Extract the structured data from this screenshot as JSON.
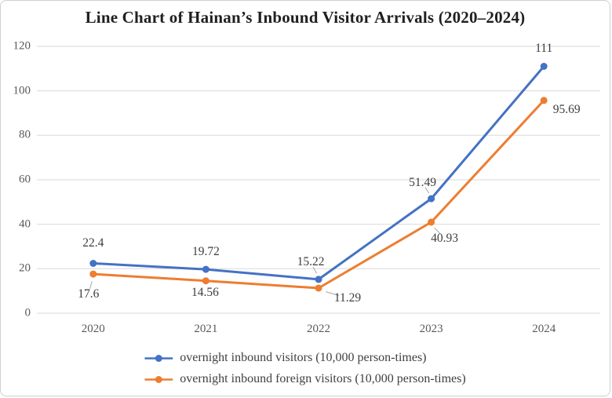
{
  "title": "Line Chart of Hainan’s Inbound Visitor Arrivals (2020–2024)",
  "chart_data": {
    "type": "line",
    "categories": [
      "2020",
      "2021",
      "2022",
      "2023",
      "2024"
    ],
    "series": [
      {
        "name": "overnight inbound visitors (10,000 person-times)",
        "color": "#4472C4",
        "values": [
          22.4,
          19.72,
          15.22,
          51.49,
          111
        ],
        "data_labels": [
          "22.4",
          "19.72",
          "15.22",
          "51.49",
          "111"
        ],
        "label_offsets": [
          [
            0,
            -26
          ],
          [
            0,
            -22
          ],
          [
            -10,
            -22
          ],
          [
            -11,
            -20
          ],
          [
            0,
            -23
          ]
        ],
        "label_leaders": [
          false,
          false,
          true,
          true,
          false
        ]
      },
      {
        "name": "overnight inbound foreign visitors (10,000 person-times)",
        "color": "#ED7D31",
        "values": [
          17.6,
          14.56,
          11.29,
          40.93,
          95.69
        ],
        "data_labels": [
          "17.6",
          "14.56",
          "11.29",
          "40.93",
          "95.69"
        ],
        "label_offsets": [
          [
            -6,
            26
          ],
          [
            -1,
            15
          ],
          [
            37,
            13
          ],
          [
            17,
            21
          ],
          [
            29,
            12
          ]
        ],
        "label_leaders": [
          true,
          false,
          true,
          true,
          false
        ]
      }
    ],
    "xlabel": "",
    "ylabel": "",
    "ylim": [
      0,
      120
    ],
    "yticks": [
      0,
      20,
      40,
      60,
      80,
      100,
      120
    ],
    "grid": true,
    "legend_position": "bottom",
    "gridline_color": "#D9D9D9",
    "axis_text_color": "#595959",
    "data_label_color": "#3D3D3D",
    "leader_color": "#A6A6A6"
  }
}
